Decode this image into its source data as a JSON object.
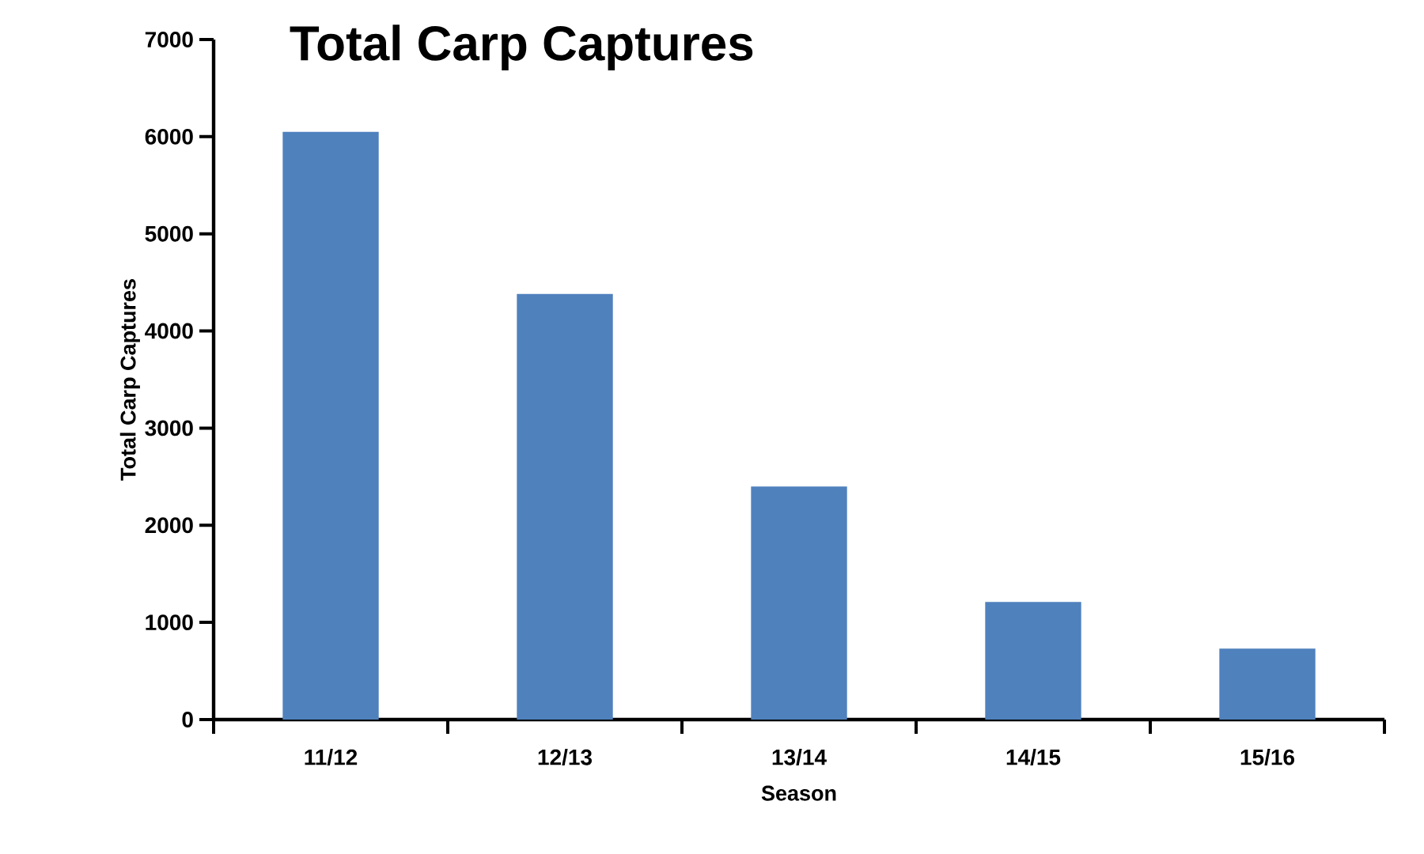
{
  "chart_data": {
    "type": "bar",
    "title": "Total Carp Captures",
    "xlabel": "Season",
    "ylabel": "Total Carp Captures",
    "categories": [
      "11/12",
      "12/13",
      "13/14",
      "14/15",
      "15/16"
    ],
    "values": [
      6050,
      4380,
      2400,
      1210,
      730
    ],
    "color": "#4f81bd",
    "ylim": [
      0,
      7000
    ],
    "yticks": [
      0,
      1000,
      2000,
      3000,
      4000,
      5000,
      6000,
      7000
    ],
    "grid": false
  }
}
